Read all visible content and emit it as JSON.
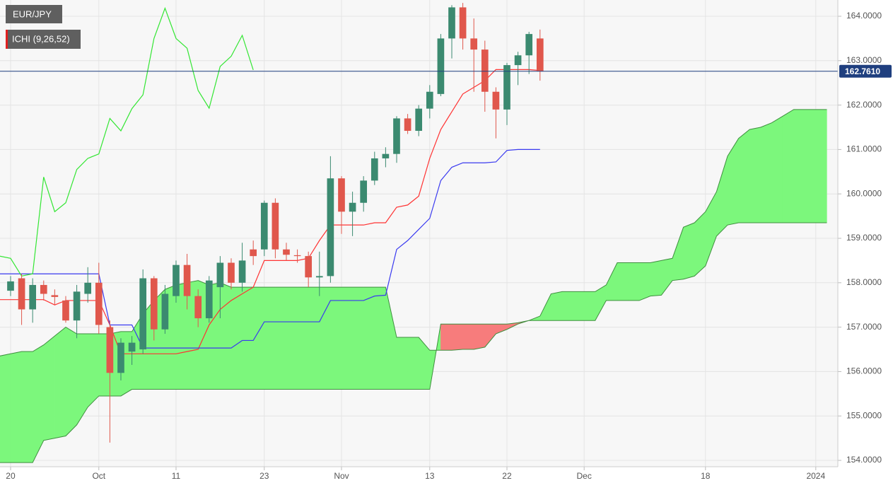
{
  "chart_data": {
    "type": "candlestick",
    "symbol": "EUR/JPY",
    "indicator": "ICHI (9,26,52)",
    "xlim": [
      -0.96,
      75
    ],
    "ylim": [
      153.857,
      164.366
    ],
    "yticks": [
      {
        "value": 154,
        "label": "154.0000"
      },
      {
        "value": 155,
        "label": "155.0000"
      },
      {
        "value": 156,
        "label": "156.0000"
      },
      {
        "value": 157,
        "label": "157.0000"
      },
      {
        "value": 158,
        "label": "158.0000"
      },
      {
        "value": 159,
        "label": "159.0000"
      },
      {
        "value": 160,
        "label": "160.0000"
      },
      {
        "value": 161,
        "label": "161.0000"
      },
      {
        "value": 162,
        "label": "162.0000"
      },
      {
        "value": 163,
        "label": "163.0000"
      },
      {
        "value": 164,
        "label": "164.0000"
      }
    ],
    "xticks": [
      {
        "value": 0,
        "label": "20"
      },
      {
        "value": 8,
        "label": "Oct"
      },
      {
        "value": 15,
        "label": "11"
      },
      {
        "value": 23,
        "label": "23"
      },
      {
        "value": 30,
        "label": "Nov"
      },
      {
        "value": 38,
        "label": "13"
      },
      {
        "value": 45,
        "label": "22"
      },
      {
        "value": 52,
        "label": "Dec"
      },
      {
        "value": 63,
        "label": "18"
      },
      {
        "value": 73,
        "label": "2024"
      }
    ],
    "grid": true,
    "up_color": "#3b8a70",
    "down_color": "#e0574c",
    "x": [
      0,
      1,
      2,
      3,
      4,
      5,
      6,
      7,
      8,
      9,
      10,
      11,
      12,
      13,
      14,
      15,
      16,
      17,
      18,
      19,
      20,
      21,
      22,
      23,
      24,
      25,
      26,
      27,
      28,
      29,
      30,
      31,
      32,
      33,
      34,
      35,
      36,
      37,
      38,
      39,
      40,
      41,
      42,
      43,
      44,
      45,
      46,
      47,
      48
    ],
    "open": [
      157.82,
      158.1,
      157.4,
      157.95,
      157.72,
      157.6,
      157.15,
      157.75,
      158.0,
      157.0,
      155.97,
      156.45,
      156.5,
      158.1,
      156.95,
      157.7,
      158.4,
      157.7,
      157.2,
      157.9,
      158.45,
      158.0,
      158.75,
      158.75,
      159.8,
      158.75,
      158.62,
      158.6,
      158.12,
      158.15,
      160.35,
      159.6,
      159.8,
      160.3,
      160.8,
      160.9,
      161.7,
      161.42,
      161.92,
      162.25,
      163.5,
      164.2,
      163.5,
      163.25,
      162.3,
      161.9,
      162.9,
      163.12,
      163.5
    ],
    "high": [
      158.15,
      158.2,
      158.1,
      158.05,
      157.85,
      157.7,
      157.95,
      158.35,
      158.45,
      157.15,
      156.75,
      156.8,
      158.3,
      158.15,
      157.95,
      158.5,
      158.65,
      157.85,
      158.15,
      158.6,
      158.55,
      158.9,
      158.95,
      159.85,
      159.9,
      158.9,
      158.75,
      158.7,
      158.7,
      160.85,
      160.4,
      160.05,
      160.4,
      160.95,
      161.05,
      161.75,
      161.8,
      162.0,
      162.45,
      163.6,
      164.25,
      164.3,
      163.95,
      163.45,
      162.4,
      162.95,
      163.2,
      163.65,
      163.7
    ],
    "low": [
      157.7,
      157.05,
      157.1,
      157.6,
      157.5,
      157.1,
      156.75,
      157.55,
      156.85,
      154.4,
      155.8,
      156.15,
      156.4,
      156.7,
      156.85,
      157.55,
      157.4,
      157.0,
      157.1,
      157.2,
      157.85,
      157.8,
      158.4,
      158.6,
      158.55,
      158.5,
      158.45,
      157.9,
      157.7,
      158.0,
      159.1,
      159.05,
      159.6,
      160.2,
      160.6,
      160.7,
      161.35,
      161.3,
      161.7,
      162.2,
      163.05,
      163.25,
      162.3,
      161.85,
      161.25,
      161.55,
      162.45,
      162.7,
      162.55
    ],
    "close": [
      158.03,
      157.4,
      157.95,
      157.75,
      157.68,
      157.15,
      157.8,
      158.0,
      157.05,
      155.97,
      156.65,
      156.65,
      158.1,
      156.95,
      157.75,
      158.4,
      157.7,
      157.2,
      158.05,
      158.45,
      158.0,
      158.5,
      158.6,
      159.8,
      158.75,
      158.63,
      158.6,
      158.12,
      158.15,
      160.35,
      159.6,
      159.8,
      160.3,
      160.8,
      160.9,
      161.7,
      161.42,
      161.92,
      162.3,
      163.5,
      164.2,
      163.5,
      163.25,
      162.3,
      161.9,
      162.9,
      163.12,
      163.6,
      162.76
    ],
    "last_price": {
      "value": 162.761,
      "label": "162.7610",
      "color": "#1f3f7f"
    },
    "series": [
      {
        "color": "#ff3333",
        "x": [
          -1,
          0,
          1,
          2,
          3,
          4,
          5,
          6,
          7,
          8,
          9,
          10,
          11,
          12,
          13,
          14,
          15,
          16,
          17,
          18,
          19,
          20,
          21,
          22,
          23,
          24,
          25,
          26,
          27,
          28,
          29,
          30,
          31,
          32,
          33,
          34,
          35,
          36,
          37,
          38,
          39,
          40,
          41,
          42,
          43,
          44,
          45,
          46,
          47,
          48
        ],
        "values": [
          157.62,
          157.62,
          157.62,
          157.62,
          157.62,
          157.5,
          157.6,
          157.6,
          157.6,
          157.6,
          157.05,
          156.4,
          156.4,
          156.4,
          156.4,
          156.4,
          156.4,
          156.45,
          156.5,
          157.05,
          157.4,
          157.6,
          157.75,
          157.9,
          158.5,
          158.5,
          158.5,
          158.5,
          158.55,
          158.95,
          159.3,
          159.3,
          159.3,
          159.3,
          159.35,
          159.35,
          159.7,
          159.75,
          159.95,
          160.8,
          161.45,
          161.85,
          162.25,
          162.4,
          162.55,
          162.8,
          162.8,
          162.8,
          162.8,
          162.78
        ]
      },
      {
        "color": "#3a3af0",
        "x": [
          -1,
          0,
          1,
          2,
          3,
          4,
          5,
          6,
          7,
          8,
          9,
          10,
          11,
          12,
          13,
          14,
          15,
          16,
          17,
          18,
          19,
          20,
          21,
          22,
          23,
          24,
          25,
          26,
          27,
          28,
          29,
          30,
          31,
          32,
          33,
          34,
          35,
          36,
          37,
          38,
          39,
          40,
          41,
          42,
          43,
          44,
          45,
          46,
          47,
          48
        ],
        "values": [
          158.2,
          158.2,
          158.2,
          158.2,
          158.2,
          158.2,
          158.2,
          158.2,
          158.2,
          158.2,
          157.05,
          157.05,
          157.05,
          156.53,
          156.53,
          156.53,
          156.53,
          156.53,
          156.53,
          156.53,
          156.53,
          156.53,
          156.7,
          156.7,
          157.12,
          157.12,
          157.12,
          157.12,
          157.12,
          157.12,
          157.6,
          157.6,
          157.6,
          157.6,
          157.7,
          157.72,
          158.75,
          158.95,
          159.2,
          159.45,
          160.3,
          160.6,
          160.7,
          160.7,
          160.7,
          160.72,
          160.98,
          161.0,
          161.0,
          161.0
        ]
      },
      {
        "color": "#33e633",
        "x": [
          -1,
          0,
          1,
          2,
          3,
          4,
          5,
          6,
          7,
          8,
          9,
          10,
          11,
          12,
          13,
          14,
          15,
          16,
          17,
          18,
          19,
          20,
          21,
          22
        ],
        "values": [
          158.6,
          158.55,
          158.15,
          158.2,
          160.38,
          159.6,
          159.8,
          160.55,
          160.8,
          160.9,
          161.7,
          161.42,
          161.92,
          162.23,
          163.5,
          164.18,
          163.5,
          163.28,
          162.33,
          161.93,
          162.87,
          163.1,
          163.57,
          162.79
        ]
      }
    ],
    "cloud": {
      "up_color": "#7cf77c",
      "down_color": "#f77c7c",
      "edge_color": "#3f8f3f",
      "x": [
        -1,
        0,
        1,
        2,
        3,
        4,
        5,
        6,
        7,
        8,
        9,
        10,
        11,
        12,
        13,
        14,
        15,
        16,
        17,
        18,
        19,
        20,
        21,
        22,
        23,
        24,
        25,
        26,
        27,
        28,
        29,
        30,
        31,
        32,
        33,
        34,
        35,
        36,
        37,
        38,
        39,
        40,
        41,
        42,
        43,
        44,
        45,
        46,
        47,
        48,
        49,
        50,
        51,
        52,
        53,
        54,
        55,
        56,
        57,
        58,
        59,
        60,
        61,
        62,
        63,
        64,
        65,
        66,
        67,
        68,
        69,
        70,
        71,
        72,
        73,
        74
      ],
      "span_a": [
        156.35,
        156.4,
        156.45,
        156.45,
        156.6,
        156.8,
        157.0,
        156.85,
        156.85,
        156.85,
        156.85,
        156.9,
        156.9,
        157.3,
        157.6,
        157.85,
        157.95,
        158.0,
        158.05,
        157.95,
        158.0,
        157.9,
        157.9,
        157.9,
        157.9,
        157.9,
        157.9,
        157.9,
        157.9,
        157.9,
        157.9,
        157.9,
        157.9,
        157.9,
        157.9,
        157.9,
        156.77,
        156.77,
        156.77,
        156.48,
        156.48,
        156.48,
        156.5,
        156.5,
        156.55,
        156.85,
        156.95,
        157.07,
        157.15,
        157.25,
        157.75,
        157.8,
        157.8,
        157.8,
        157.8,
        157.95,
        158.45,
        158.45,
        158.45,
        158.45,
        158.5,
        158.55,
        159.25,
        159.35,
        159.6,
        160.05,
        160.85,
        161.25,
        161.45,
        161.5,
        161.6,
        161.75,
        161.9,
        161.9,
        161.9,
        161.9
      ],
      "span_b": [
        153.95,
        153.95,
        153.95,
        153.95,
        154.45,
        154.5,
        154.55,
        154.8,
        155.2,
        155.45,
        155.45,
        155.45,
        155.6,
        155.6,
        155.6,
        155.6,
        155.6,
        155.6,
        155.6,
        155.6,
        155.6,
        155.6,
        155.6,
        155.6,
        155.6,
        155.6,
        155.6,
        155.6,
        155.6,
        155.6,
        155.6,
        155.6,
        155.6,
        155.6,
        155.6,
        155.6,
        155.6,
        155.6,
        155.6,
        155.6,
        157.07,
        157.07,
        157.07,
        157.07,
        157.07,
        157.07,
        157.07,
        157.1,
        157.15,
        157.15,
        157.15,
        157.15,
        157.15,
        157.15,
        157.15,
        157.6,
        157.6,
        157.6,
        157.6,
        157.7,
        157.72,
        158.05,
        158.08,
        158.15,
        158.38,
        159.05,
        159.3,
        159.35,
        159.35,
        159.35,
        159.35,
        159.35,
        159.35,
        159.35,
        159.35,
        159.35
      ]
    }
  }
}
